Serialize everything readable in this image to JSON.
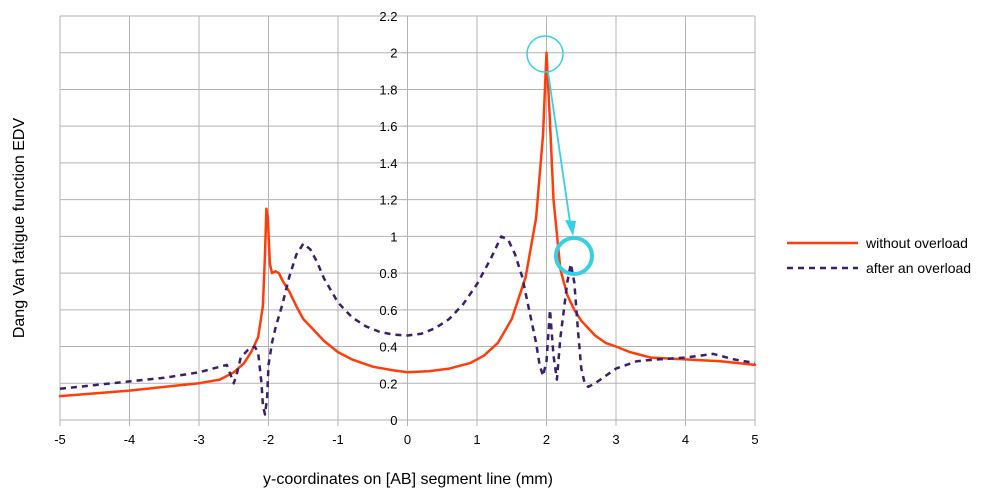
{
  "chart_data": {
    "type": "line",
    "xlabel": "y-coordinates on [AB] segment line (mm)",
    "ylabel": "Dang Van fatigue function EDV",
    "xlim": [
      -5,
      5
    ],
    "ylim": [
      0,
      2.2
    ],
    "x_ticks": [
      -5,
      -4,
      -3,
      -2,
      -1,
      0,
      1,
      2,
      3,
      4,
      5
    ],
    "y_ticks": [
      0,
      0.2,
      0.4,
      0.6,
      0.8,
      1,
      1.2,
      1.4,
      1.6,
      1.8,
      2,
      2.2
    ],
    "x_tick_labels": [
      "-5",
      "-4",
      "-3",
      "-2",
      "-1",
      "0",
      "1",
      "2",
      "3",
      "4",
      "5"
    ],
    "y_tick_labels": [
      "0",
      "0.2",
      "0.4",
      "0.6",
      "0.8",
      "1",
      "1.2",
      "1.4",
      "1.6",
      "1.8",
      "2",
      "2.2"
    ],
    "grid": true,
    "legend_position": "right",
    "series": [
      {
        "name": "without overload",
        "color": "#ff3d0a",
        "style": "solid",
        "points": [
          [
            -5,
            0.13
          ],
          [
            -4.5,
            0.145
          ],
          [
            -4,
            0.16
          ],
          [
            -3.5,
            0.18
          ],
          [
            -3,
            0.2
          ],
          [
            -2.7,
            0.22
          ],
          [
            -2.5,
            0.26
          ],
          [
            -2.35,
            0.31
          ],
          [
            -2.25,
            0.37
          ],
          [
            -2.15,
            0.45
          ],
          [
            -2.08,
            0.62
          ],
          [
            -2.05,
            0.9
          ],
          [
            -2.03,
            1.15
          ],
          [
            -2.01,
            1.1
          ],
          [
            -1.98,
            0.85
          ],
          [
            -1.95,
            0.8
          ],
          [
            -1.9,
            0.81
          ],
          [
            -1.85,
            0.8
          ],
          [
            -1.8,
            0.76
          ],
          [
            -1.7,
            0.7
          ],
          [
            -1.6,
            0.62
          ],
          [
            -1.5,
            0.55
          ],
          [
            -1.35,
            0.49
          ],
          [
            -1.2,
            0.43
          ],
          [
            -1,
            0.37
          ],
          [
            -0.8,
            0.33
          ],
          [
            -0.5,
            0.29
          ],
          [
            -0.2,
            0.27
          ],
          [
            0,
            0.26
          ],
          [
            0.3,
            0.265
          ],
          [
            0.6,
            0.28
          ],
          [
            0.9,
            0.31
          ],
          [
            1.1,
            0.35
          ],
          [
            1.3,
            0.42
          ],
          [
            1.5,
            0.55
          ],
          [
            1.7,
            0.78
          ],
          [
            1.85,
            1.1
          ],
          [
            1.95,
            1.55
          ],
          [
            2.0,
            2.0
          ],
          [
            2.05,
            1.62
          ],
          [
            2.1,
            1.2
          ],
          [
            2.2,
            0.82
          ],
          [
            2.3,
            0.68
          ],
          [
            2.4,
            0.6
          ],
          [
            2.5,
            0.54
          ],
          [
            2.7,
            0.46
          ],
          [
            2.85,
            0.42
          ],
          [
            3,
            0.4
          ],
          [
            3.2,
            0.37
          ],
          [
            3.5,
            0.34
          ],
          [
            4,
            0.33
          ],
          [
            4.5,
            0.32
          ],
          [
            5,
            0.3
          ]
        ]
      },
      {
        "name": "after an overload",
        "color": "#3b1f6b",
        "style": "dashed",
        "points": [
          [
            -5,
            0.17
          ],
          [
            -4.5,
            0.19
          ],
          [
            -4,
            0.21
          ],
          [
            -3.5,
            0.23
          ],
          [
            -3,
            0.26
          ],
          [
            -2.8,
            0.28
          ],
          [
            -2.6,
            0.3
          ],
          [
            -2.55,
            0.25
          ],
          [
            -2.5,
            0.2
          ],
          [
            -2.45,
            0.26
          ],
          [
            -2.4,
            0.34
          ],
          [
            -2.3,
            0.38
          ],
          [
            -2.2,
            0.4
          ],
          [
            -2.15,
            0.37
          ],
          [
            -2.1,
            0.2
          ],
          [
            -2.08,
            0.08
          ],
          [
            -2.05,
            0.03
          ],
          [
            -2.02,
            0.12
          ],
          [
            -2.0,
            0.3
          ],
          [
            -1.95,
            0.42
          ],
          [
            -1.9,
            0.5
          ],
          [
            -1.8,
            0.63
          ],
          [
            -1.7,
            0.78
          ],
          [
            -1.6,
            0.9
          ],
          [
            -1.5,
            0.96
          ],
          [
            -1.4,
            0.93
          ],
          [
            -1.3,
            0.86
          ],
          [
            -1.2,
            0.77
          ],
          [
            -1.0,
            0.64
          ],
          [
            -0.8,
            0.56
          ],
          [
            -0.6,
            0.51
          ],
          [
            -0.4,
            0.48
          ],
          [
            -0.2,
            0.465
          ],
          [
            0,
            0.46
          ],
          [
            0.2,
            0.47
          ],
          [
            0.4,
            0.5
          ],
          [
            0.6,
            0.55
          ],
          [
            0.8,
            0.63
          ],
          [
            1.0,
            0.74
          ],
          [
            1.2,
            0.88
          ],
          [
            1.35,
            1.0
          ],
          [
            1.45,
            0.98
          ],
          [
            1.55,
            0.9
          ],
          [
            1.65,
            0.78
          ],
          [
            1.75,
            0.6
          ],
          [
            1.85,
            0.42
          ],
          [
            1.9,
            0.3
          ],
          [
            1.95,
            0.24
          ],
          [
            2.0,
            0.32
          ],
          [
            2.05,
            0.6
          ],
          [
            2.1,
            0.35
          ],
          [
            2.15,
            0.22
          ],
          [
            2.2,
            0.45
          ],
          [
            2.25,
            0.6
          ],
          [
            2.3,
            0.75
          ],
          [
            2.35,
            0.85
          ],
          [
            2.4,
            0.75
          ],
          [
            2.45,
            0.5
          ],
          [
            2.5,
            0.28
          ],
          [
            2.55,
            0.2
          ],
          [
            2.6,
            0.18
          ],
          [
            2.7,
            0.2
          ],
          [
            2.85,
            0.24
          ],
          [
            3,
            0.28
          ],
          [
            3.3,
            0.32
          ],
          [
            3.6,
            0.33
          ],
          [
            4,
            0.34
          ],
          [
            4.4,
            0.36
          ],
          [
            4.7,
            0.33
          ],
          [
            5,
            0.31
          ]
        ]
      }
    ]
  }
}
